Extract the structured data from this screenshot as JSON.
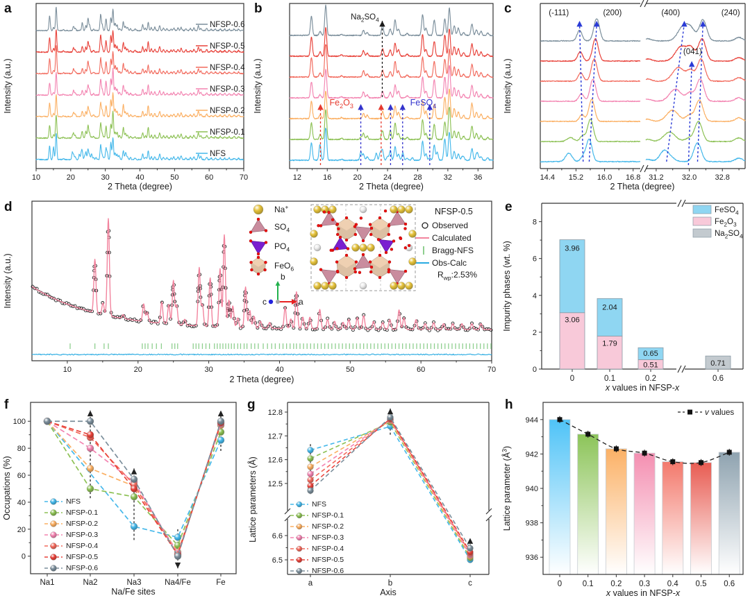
{
  "panels": {
    "a": {
      "letter": "a"
    },
    "b": {
      "letter": "b"
    },
    "c": {
      "letter": "c"
    },
    "d": {
      "letter": "d"
    },
    "e": {
      "letter": "e"
    },
    "f": {
      "letter": "f"
    },
    "g": {
      "letter": "g"
    },
    "h": {
      "letter": "h"
    }
  },
  "series": [
    {
      "name": "NFS",
      "color": "#45b8ea"
    },
    {
      "name": "NFSP-0.1",
      "color": "#8dc155"
    },
    {
      "name": "NFSP-0.2",
      "color": "#fbaf62"
    },
    {
      "name": "NFSP-0.3",
      "color": "#f384b1"
    },
    {
      "name": "NFSP-0.4",
      "color": "#f26a5d"
    },
    {
      "name": "NFSP-0.5",
      "color": "#e8423a"
    },
    {
      "name": "NFSP-0.6",
      "color": "#7b8e9b"
    }
  ],
  "xrd": {
    "peaks": [
      [
        13.9,
        0.55
      ],
      [
        15.05,
        0.12
      ],
      [
        15.8,
        1.0
      ],
      [
        17.9,
        0.04
      ],
      [
        20.8,
        0.18
      ],
      [
        21.3,
        0.1
      ],
      [
        23.35,
        0.22
      ],
      [
        24.35,
        0.2
      ],
      [
        25.0,
        0.45
      ],
      [
        25.45,
        0.2
      ],
      [
        26.6,
        0.06
      ],
      [
        28.65,
        0.6
      ],
      [
        29.1,
        0.22
      ],
      [
        30.2,
        0.5
      ],
      [
        31.6,
        0.6
      ],
      [
        32.2,
        0.95
      ],
      [
        32.85,
        0.28
      ],
      [
        33.4,
        0.22
      ],
      [
        34.1,
        0.1
      ],
      [
        35.2,
        0.42
      ],
      [
        35.8,
        0.18
      ],
      [
        36.4,
        0.12
      ],
      [
        37.3,
        0.07
      ],
      [
        38.6,
        0.06
      ],
      [
        40.8,
        0.22
      ],
      [
        41.6,
        0.1
      ],
      [
        42.4,
        0.38
      ],
      [
        43.3,
        0.12
      ],
      [
        44.3,
        0.12
      ],
      [
        45.7,
        0.2
      ],
      [
        46.8,
        0.1
      ],
      [
        47.8,
        0.08
      ],
      [
        49.0,
        0.07
      ],
      [
        49.8,
        0.1
      ],
      [
        51.0,
        0.12
      ],
      [
        51.9,
        0.14
      ],
      [
        53.3,
        0.08
      ],
      [
        54.6,
        0.07
      ],
      [
        55.6,
        0.1
      ],
      [
        56.9,
        0.2
      ],
      [
        57.6,
        0.12
      ],
      [
        59.3,
        0.1
      ],
      [
        60.6,
        0.06
      ],
      [
        61.8,
        0.07
      ],
      [
        63.2,
        0.06
      ],
      [
        64.5,
        0.06
      ],
      [
        65.8,
        0.06
      ],
      [
        67.2,
        0.06
      ],
      [
        68.5,
        0.06
      ]
    ],
    "nfs_extra_peaks": [
      [
        15.0,
        0.3
      ],
      [
        20.45,
        0.15
      ],
      [
        22.5,
        0.22
      ],
      [
        23.0,
        0.2
      ],
      [
        24.0,
        0.12
      ],
      [
        26.05,
        0.14
      ],
      [
        27.3,
        0.08
      ],
      [
        30.6,
        0.25
      ],
      [
        33.9,
        0.1
      ],
      [
        36.0,
        0.15
      ]
    ],
    "impurity_peaks": [
      [
        15.1,
        0.1
      ],
      [
        20.45,
        0.12
      ],
      [
        23.2,
        0.14
      ],
      [
        24.4,
        0.12
      ],
      [
        26.0,
        0.1
      ],
      [
        29.6,
        0.08
      ]
    ],
    "na2so4_peak": [
      23.3,
      0.1
    ]
  },
  "chart_data": [
    {
      "id": "a",
      "type": "line",
      "xlabel": "2 Theta (degree)",
      "ylabel": "Intensity (a.u.)",
      "xlim": [
        10,
        70
      ],
      "xticks": [
        10,
        20,
        30,
        40,
        50,
        60,
        70
      ],
      "series_labels": [
        "NFS",
        "NFSP-0.1",
        "NFSP-0.2",
        "NFSP-0.3",
        "NFSP-0.4",
        "NFSP-0.5",
        "NFSP-0.6"
      ]
    },
    {
      "id": "b",
      "type": "line",
      "xlabel": "2 Theta (degree)",
      "ylabel": "Intensity (a.u.)",
      "xlim": [
        11,
        38
      ],
      "xticks": [
        12,
        16,
        20,
        24,
        28,
        32,
        36
      ],
      "annotations": [
        {
          "label": [
            [
              "Na",
              ""
            ],
            [
              "2",
              "sub"
            ],
            [
              "SO",
              ""
            ],
            [
              "4",
              "sub"
            ]
          ],
          "color": "#1a1a1a",
          "arrows": [
            23.3
          ],
          "style": "top",
          "label_x": 23.05
        },
        {
          "label": [
            [
              "Fe",
              ""
            ],
            [
              "2",
              "sub"
            ],
            [
              "O",
              ""
            ],
            [
              "3",
              "sub"
            ]
          ],
          "color": "#e63a2e",
          "arrows": [
            15.1,
            23.15
          ],
          "style": "mid",
          "label_x": 16.3
        },
        {
          "label": [
            [
              "FeSO",
              ""
            ],
            [
              "4",
              "sub"
            ]
          ],
          "color": "#3333cc",
          "arrows": [
            20.45,
            24.4,
            26.0,
            29.6
          ],
          "style": "mid",
          "label_x": 27.0
        }
      ]
    },
    {
      "id": "c",
      "type": "line",
      "xlabel": "2 Theta (degree)",
      "ylabel": "Intensity (a.u.)",
      "segments": [
        {
          "xlim": [
            14.2,
            17.0
          ],
          "xticks": [
            14.4,
            15.2,
            16.0,
            16.8
          ]
        },
        {
          "xlim": [
            30.95,
            33.35
          ],
          "xticks": [
            31.2,
            32.0,
            32.8
          ]
        }
      ],
      "reflections": [
        {
          "label": "(-111)",
          "label_x": 14.72,
          "label_y": 22,
          "start": 15.4,
          "end": 15.3,
          "w": 0.07,
          "heights": [
            0.22,
            0.26,
            0.3,
            0.34,
            0.38,
            0.42,
            0.48
          ],
          "arrow": "long"
        },
        {
          "label": "(200)",
          "label_x": 16.22,
          "label_y": 22,
          "start": 15.57,
          "end": 15.78,
          "w": 0.08,
          "heights": [
            1,
            1,
            1,
            1,
            1,
            1,
            1
          ],
          "arrow": "long"
        },
        {
          "label": "(400)",
          "label_x": 31.55,
          "label_y": 22,
          "start": 31.45,
          "end": 31.88,
          "w": 0.14,
          "heights": [
            0.32,
            0.42,
            0.5,
            0.55,
            0.62,
            0.66,
            0.72
          ],
          "arrow": "long"
        },
        {
          "label": "(041)",
          "label_x": 32.08,
          "label_y": 78,
          "start": 31.98,
          "end": 32.06,
          "w": 0.09,
          "heights": [
            0,
            0.15,
            0.28,
            0.38,
            0.45,
            0.5,
            0.3
          ],
          "arrow": "short"
        },
        {
          "label": "(240)",
          "label_x": 33.0,
          "label_y": 22,
          "start": 32.2,
          "end": 32.33,
          "w": 0.09,
          "heights": [
            0.85,
            0.9,
            0.95,
            1,
            1,
            1,
            0.95
          ],
          "arrow": "long"
        }
      ],
      "nfs_extra_peaks": [
        [
          15.0,
          0.38
        ],
        [
          31.38,
          0.22
        ]
      ],
      "common_extra_peaks": [
        [
          30.99,
          0.1
        ],
        [
          33.2,
          0.16
        ]
      ]
    },
    {
      "id": "d",
      "type": "scatter+line",
      "xlabel": "2 Theta (degree)",
      "ylabel": "Intensity (a.u.)",
      "xlim": [
        5,
        70
      ],
      "xticks": [
        10,
        20,
        30,
        40,
        50,
        60,
        70
      ],
      "legend": {
        "title": "NFSP-0.5",
        "observed": "Observed",
        "calculated": "Calculated",
        "bragg": "Bragg-NFS",
        "diff": "Obs-Calc",
        "rwp": [
          [
            "R",
            ""
          ],
          [
            "wp",
            "sub"
          ],
          [
            ":2.53%",
            ""
          ]
        ]
      },
      "colors": {
        "observed": "#1a1a1a",
        "calculated": "#f2849e",
        "bragg": "#8fcf8f",
        "diff": "#29abe2"
      },
      "inset_legend": [
        {
          "label": [
            [
              "Na",
              ""
            ],
            [
              "+",
              "sup"
            ]
          ],
          "color": "#e6c33c",
          "shape": "sphere"
        },
        {
          "label": [
            [
              "SO",
              ""
            ],
            [
              "4",
              "sub"
            ]
          ],
          "color": "#c98c9e",
          "shape": "tetra"
        },
        {
          "label": [
            [
              "PO",
              ""
            ],
            [
              "4",
              "sub"
            ]
          ],
          "color": "#7a1fd0",
          "shape": "tetra"
        },
        {
          "label": [
            [
              "FeO",
              ""
            ],
            [
              "6",
              "sub"
            ]
          ],
          "color": "#dcc0a4",
          "shape": "octa"
        }
      ],
      "axes_triad": {
        "a_label": "a",
        "b_label": "b",
        "c_label": "c",
        "a_color": "#e82222",
        "b_color": "#22b14c",
        "c_color": "#2222dd"
      },
      "bragg_ticks": [
        10.4,
        13.9,
        15.2,
        15.8,
        20.6,
        21.0,
        21.4,
        22.0,
        22.6,
        23.3,
        24.8,
        25.2,
        25.6,
        27.8,
        28.2,
        28.6,
        29.1,
        29.6,
        30.1,
        30.8,
        31.2,
        31.6,
        32.0,
        32.4,
        32.8,
        33.2,
        33.6,
        34.1,
        34.5,
        35.0,
        35.4,
        36.0,
        36.5,
        37.0,
        37.7,
        38.3,
        38.9,
        39.4,
        40.0,
        40.5,
        41.0,
        41.5,
        42.0,
        42.4,
        42.9,
        43.4,
        43.9,
        44.4,
        44.9,
        45.4,
        45.9,
        46.4,
        46.9,
        47.4,
        47.9,
        48.4,
        48.9,
        49.4,
        49.9,
        50.4,
        50.9,
        51.4,
        51.9,
        52.4,
        52.9,
        53.4,
        53.9,
        54.4,
        54.9,
        55.4,
        55.9,
        56.4,
        56.9,
        57.4,
        57.9,
        58.4,
        58.9,
        59.4,
        59.9,
        60.4,
        60.9,
        61.4,
        61.9,
        62.4,
        62.9,
        63.4,
        63.9,
        64.4,
        64.9,
        65.4,
        65.9,
        66.4,
        66.9,
        67.4,
        67.9,
        68.4,
        68.9,
        69.4,
        69.9
      ]
    },
    {
      "id": "e",
      "type": "bar",
      "ylabel": "Impurity phases (wt. %)",
      "xlabel_parts": [
        [
          "x",
          "i"
        ],
        [
          " values in NFSP-",
          ""
        ],
        [
          "x",
          "i"
        ]
      ],
      "categories": [
        "0",
        "0.1",
        "0.2",
        "0.6"
      ],
      "ylim": [
        0,
        9
      ],
      "yticks": [
        0,
        2,
        4,
        6,
        8
      ],
      "stack_order": [
        1,
        0,
        2
      ],
      "series": [
        {
          "name": [
            [
              "FeSO",
              ""
            ],
            [
              "4",
              "sub"
            ]
          ],
          "color": "#8fd6f2",
          "values": [
            3.96,
            2.04,
            0.65,
            0
          ]
        },
        {
          "name": [
            [
              "Fe",
              ""
            ],
            [
              "2",
              "sub"
            ],
            [
              "O",
              ""
            ],
            [
              "3",
              "sub"
            ]
          ],
          "color": "#f8c9d9",
          "values": [
            3.06,
            1.79,
            0.51,
            0
          ]
        },
        {
          "name": [
            [
              "Na",
              ""
            ],
            [
              "2",
              "sub"
            ],
            [
              "SO",
              ""
            ],
            [
              "4",
              "sub"
            ]
          ],
          "color": "#c3cacf",
          "values": [
            0,
            0,
            0,
            0.71
          ]
        }
      ]
    },
    {
      "id": "f",
      "type": "line",
      "xlabel": "Na/Fe sites",
      "ylabel": "Occupations (%)",
      "categories": [
        "Na1",
        "Na2",
        "Na3",
        "Na4/Fe",
        "Fe"
      ],
      "ylim": [
        -13,
        114
      ],
      "yticks": [
        0,
        20,
        40,
        60,
        80,
        100
      ],
      "values": [
        [
          100,
          null,
          22,
          14,
          86
        ],
        [
          100,
          50,
          44,
          8,
          92
        ],
        [
          100,
          65,
          52,
          3,
          97
        ],
        [
          100,
          80,
          55,
          2,
          98
        ],
        [
          100,
          88,
          53,
          1,
          99
        ],
        [
          100,
          90,
          50,
          1,
          99
        ],
        [
          100,
          100,
          57,
          0,
          100
        ]
      ],
      "arrows": [
        {
          "cat": 1,
          "from": 43,
          "to": 108,
          "dir": "up"
        },
        {
          "cat": 2,
          "from": 12,
          "to": 65,
          "dir": "up"
        },
        {
          "cat": 3,
          "from": 20,
          "to": -9,
          "dir": "down"
        },
        {
          "cat": 4,
          "from": 78,
          "to": 108,
          "dir": "up"
        }
      ]
    },
    {
      "id": "g",
      "type": "line-broken",
      "xlabel": "Axis",
      "ylabel": "Lattice parameters (Å)",
      "categories": [
        "a",
        "b",
        "c"
      ],
      "upper": {
        "ticks": [
          12.5,
          12.6,
          12.7,
          12.8
        ]
      },
      "lower": {
        "ticks": [
          6.5,
          6.6
        ]
      },
      "values": [
        [
          12.64,
          12.74,
          6.5
        ],
        [
          12.605,
          12.757,
          6.508
        ],
        [
          12.57,
          12.763,
          6.514
        ],
        [
          12.54,
          12.768,
          6.52
        ],
        [
          12.515,
          12.77,
          6.526
        ],
        [
          12.49,
          12.772,
          6.532
        ],
        [
          12.47,
          12.778,
          6.548
        ]
      ],
      "arrows": [
        {
          "cat": 0,
          "from": 12.665,
          "to": 12.455,
          "dir": "down"
        },
        {
          "cat": 1,
          "from": 12.705,
          "to": 12.815,
          "dir": "up"
        },
        {
          "cat": 2,
          "from": 6.487,
          "to": 6.59,
          "dir": "up"
        }
      ]
    },
    {
      "id": "h",
      "type": "bar+line",
      "ylabel_parts": [
        [
          "Lattice parameter (Å",
          ""
        ],
        [
          "3",
          "sup"
        ],
        [
          ")",
          ""
        ]
      ],
      "xlabel_parts": [
        [
          "x",
          "i"
        ],
        [
          " values in NFSP-",
          ""
        ],
        [
          "x",
          "i"
        ]
      ],
      "categories": [
        "0",
        "0.1",
        "0.2",
        "0.3",
        "0.4",
        "0.5",
        "0.6"
      ],
      "ylim": [
        935,
        945
      ],
      "yticks": [
        936,
        938,
        940,
        942,
        944
      ],
      "values": [
        944.0,
        943.15,
        942.3,
        942.05,
        941.55,
        941.5,
        942.1
      ],
      "bar_colors": [
        "#4fc3f7",
        "#8cc459",
        "#fbb166",
        "#f48fb1",
        "#f3796c",
        "#e85c52",
        "#8fa3b0"
      ],
      "legend_parts": [
        [
          "v",
          "i"
        ],
        [
          " values",
          ""
        ]
      ]
    }
  ]
}
